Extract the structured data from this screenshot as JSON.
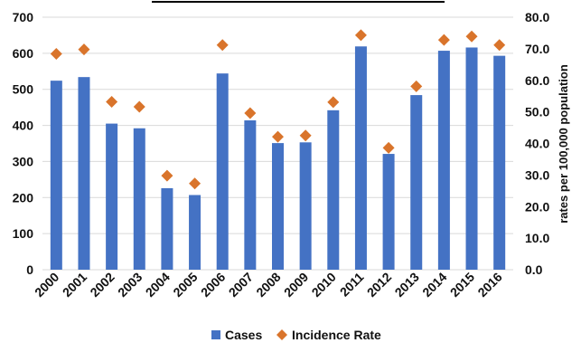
{
  "chart_data": {
    "type": "bar",
    "categories": [
      "2000",
      "2001",
      "2002",
      "2003",
      "2004",
      "2005",
      "2006",
      "2007",
      "2008",
      "2009",
      "2010",
      "2011",
      "2012",
      "2013",
      "2014",
      "2015",
      "2016"
    ],
    "series": [
      {
        "name": "Cases",
        "chart_type": "bar",
        "axis": "left",
        "values": [
          524,
          534,
          405,
          392,
          226,
          207,
          544,
          414,
          351,
          353,
          442,
          619,
          321,
          484,
          607,
          616,
          593
        ],
        "color": "#4472C4"
      },
      {
        "name": "Incidence Rate",
        "chart_type": "scatter",
        "axis": "right",
        "marker": "diamond",
        "values": [
          68.4,
          69.8,
          53.2,
          51.6,
          29.8,
          27.3,
          71.2,
          49.6,
          42.1,
          42.5,
          53.1,
          74.3,
          38.6,
          58.1,
          72.8,
          73.9,
          71.2
        ],
        "color": "#D9742B"
      }
    ],
    "title": "",
    "xlabel": "",
    "ylabel": "",
    "y2label": "rates per 100,000 population",
    "ylim": [
      0,
      700
    ],
    "y2lim": [
      0,
      80
    ],
    "yticks": [
      "0",
      "100",
      "200",
      "300",
      "400",
      "500",
      "600",
      "700"
    ],
    "y2ticks": [
      "0.0",
      "10.0",
      "20.0",
      "30.0",
      "40.0",
      "50.0",
      "60.0",
      "70.0",
      "80.0"
    ],
    "grid": true,
    "legend": "bottom"
  }
}
